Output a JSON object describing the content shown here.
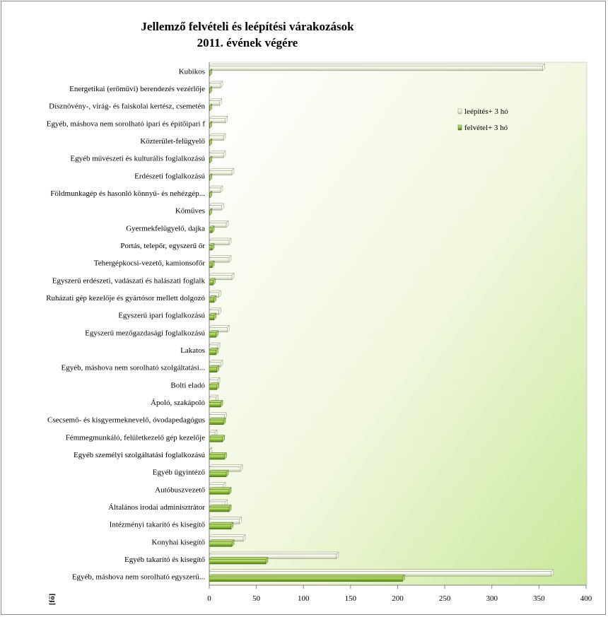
{
  "chart_data": {
    "type": "bar",
    "orientation": "horizontal",
    "title": [
      "Jellemző felvételi és leépítési várakozások",
      "2011. évének végére"
    ],
    "ylabel": "[fő]",
    "xlim": [
      0,
      400
    ],
    "xticks": [
      0,
      50,
      100,
      150,
      200,
      250,
      300,
      350,
      400
    ],
    "legend_position": "top-right",
    "categories": [
      "Kubikos",
      "Energetikai (erőművi) berendezés vezérlője",
      "Dísznövény-, virág- és faiskolai kertész, csemetén",
      "Egyéb, máshova nem sorolható ipari és építőipari f",
      "Közterület-felügyelő",
      "Egyéb művészeti és kulturális foglalkozású",
      "Erdészeti foglalkozású",
      "Földmunkagép és hasonló könnyű- és nehézgép...",
      "Kőműves",
      "Gyermekfelügyelő, dajka",
      "Portás, telepőr, egyszerű őr",
      "Tehergépkocsi-vezető, kamionsofőr",
      "Egyszerű erdészeti, vadászati és halászati foglalk",
      "Ruházati gép kezelője és gyártósor mellett dolgozó",
      "Egyszerű ipari foglalkozású",
      "Egyszerű mezőgazdasági foglalkozású",
      "Lakatos",
      "Egyéb, máshova nem sorolható szolgáltatási...",
      "Bolti eladó",
      "Ápoló, szakápoló",
      "Csecsemő- és kisgyermeknevelő, óvodapedagógus",
      "Fémmegmunkáló, felületkezelő gép kezelője",
      "Egyéb személyi szolgáltatási foglalkozású",
      "Egyéb ügyintéző",
      "Autóbuszvezető",
      "Általános irodai adminisztrátor",
      "Intézményi takarító és kisegítő",
      "Konyhai kisegítő",
      "Egyéb takarító és kisegítő",
      "Egyéb, máshova nem sorolható egyszerű..."
    ],
    "series": [
      {
        "name": "leépítés+ 3 hó",
        "color": "#e8eed8",
        "values": [
          354,
          12,
          11,
          17,
          15,
          15,
          24,
          12,
          13,
          18,
          21,
          21,
          24,
          10,
          10,
          19,
          9,
          12,
          9,
          7,
          16,
          6,
          0,
          33,
          15,
          17,
          32,
          36,
          135,
          363
        ]
      },
      {
        "name": "felvétel+ 3 hó",
        "color": "#7fae2e",
        "values": [
          0,
          0,
          0,
          0,
          0,
          0,
          0,
          0,
          0,
          3,
          3,
          3,
          4,
          5,
          5,
          7,
          7,
          8,
          8,
          12,
          15,
          14,
          16,
          18,
          21,
          21,
          23,
          24,
          60,
          205
        ]
      }
    ]
  }
}
